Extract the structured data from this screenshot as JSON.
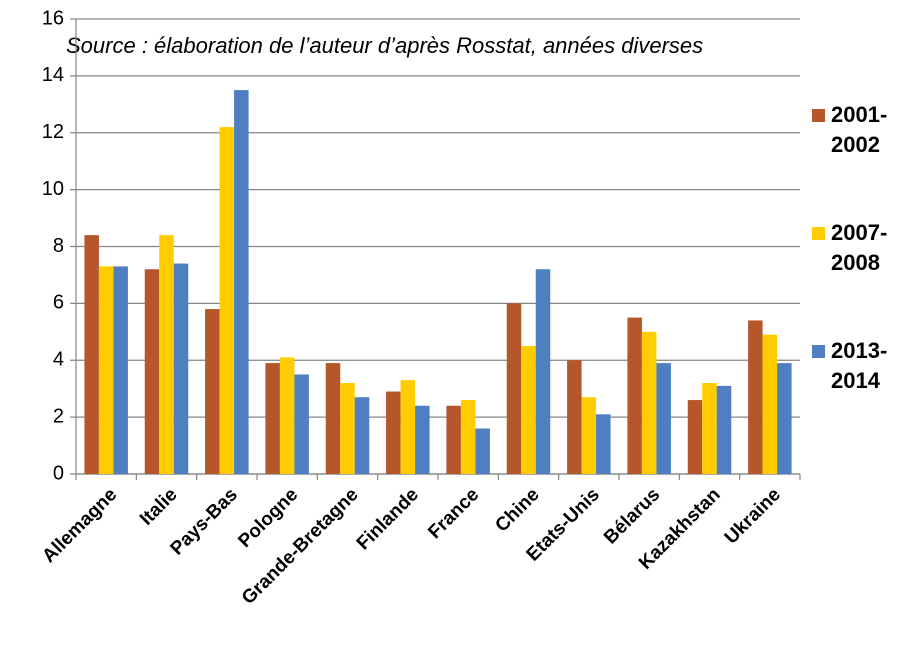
{
  "chart_data": {
    "type": "bar",
    "annotation": "Source : élaboration de l’auteur d’après Rosstat, années diverses",
    "categories": [
      "Allemagne",
      "Italie",
      "Pays-Bas",
      "Pologne",
      "Grande-Bretagne",
      "Finlande",
      "France",
      "Chine",
      "Etats-Unis",
      "Bélarus",
      "Kazakhstan",
      "Ukraine"
    ],
    "series": [
      {
        "name": "2001-2002",
        "color": "#b5562b",
        "values": [
          8.4,
          7.2,
          5.8,
          3.9,
          3.9,
          2.9,
          2.4,
          6.0,
          4.0,
          5.5,
          2.6,
          5.4
        ]
      },
      {
        "name": "2007-2008",
        "color": "#ffcc00",
        "values": [
          7.3,
          8.4,
          12.2,
          4.1,
          3.2,
          3.3,
          2.6,
          4.5,
          2.7,
          5.0,
          3.2,
          4.9
        ]
      },
      {
        "name": "2013-2014",
        "color": "#4f7fc0",
        "values": [
          7.3,
          7.4,
          13.5,
          3.5,
          2.7,
          2.4,
          1.6,
          7.2,
          2.1,
          3.9,
          3.1,
          3.9
        ]
      }
    ],
    "ylim": [
      0,
      16
    ],
    "yticks": [
      0,
      2,
      4,
      6,
      8,
      10,
      12,
      14,
      16
    ],
    "grid": true,
    "legend": "right"
  }
}
